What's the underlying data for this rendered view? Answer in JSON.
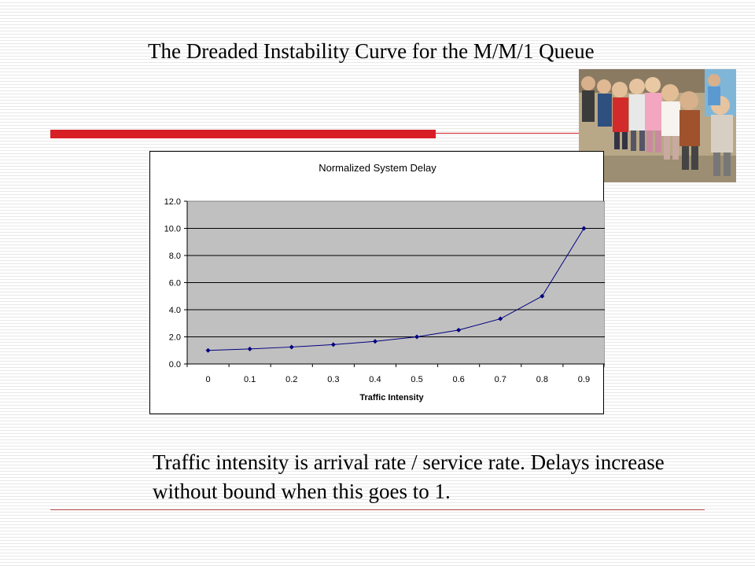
{
  "slide": {
    "title": "The Dreaded Instability Curve for the M/M/1 Queue",
    "caption": "Traffic intensity is arrival rate / service rate.  Delays increase without bound when this goes to 1."
  },
  "photo": {
    "subject": "queue of children"
  },
  "colors": {
    "accent_red": "#d81f26",
    "plot_area": "#c0c0c0",
    "series": "#000080"
  },
  "chart_data": {
    "type": "line",
    "title": "Normalized System Delay",
    "xlabel": "Traffic Intensity",
    "ylabel": "",
    "categories": [
      "0",
      "0.1",
      "0.2",
      "0.3",
      "0.4",
      "0.5",
      "0.6",
      "0.7",
      "0.8",
      "0.9"
    ],
    "series": [
      {
        "values": [
          1.0,
          1.11,
          1.25,
          1.43,
          1.67,
          2.0,
          2.5,
          3.33,
          5.0,
          10.0
        ]
      }
    ],
    "ylim": [
      0,
      12
    ],
    "yticks": [
      "0.0",
      "2.0",
      "4.0",
      "6.0",
      "8.0",
      "10.0",
      "12.0"
    ],
    "grid": true,
    "legend": "none"
  }
}
